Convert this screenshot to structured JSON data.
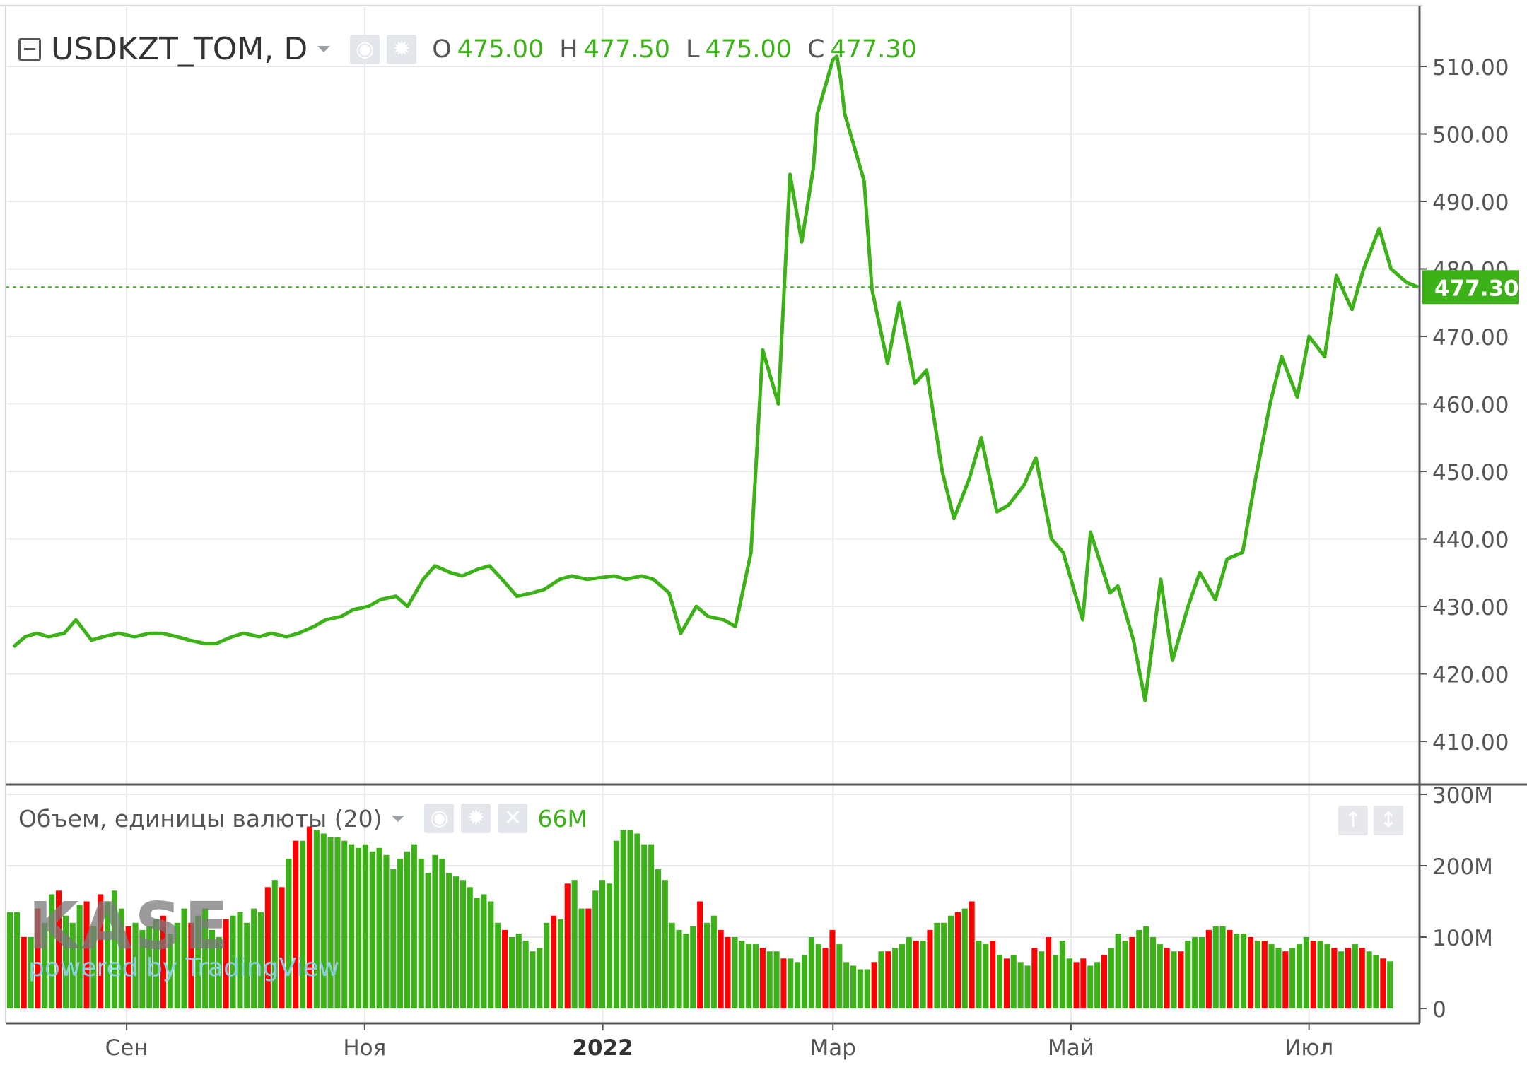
{
  "header": {
    "symbol": "USDKZT_TOM, D",
    "ohlc": [
      {
        "key": "O",
        "value": "475.00"
      },
      {
        "key": "H",
        "value": "477.50"
      },
      {
        "key": "L",
        "value": "475.00"
      },
      {
        "key": "C",
        "value": "477.30"
      }
    ]
  },
  "volume_header": {
    "title": "Объем, единицы валюты (20)",
    "value": "66M"
  },
  "logo": {
    "main": "KASE",
    "sub": "powered by TradingView"
  },
  "colors": {
    "up": "#3db218",
    "down": "#ff0000",
    "grid": "#e7e9ec",
    "axis_text": "#555555",
    "last_price_bg": "#3db218"
  },
  "chart_data": [
    {
      "type": "line",
      "title": "USDKZT_TOM, D",
      "ylim": [
        404,
        515
      ],
      "y_ticks": [
        "410.00",
        "420.00",
        "430.00",
        "440.00",
        "450.00",
        "460.00",
        "470.00",
        "480.00",
        "490.00",
        "500.00",
        "510.00"
      ],
      "last_value": "477.30",
      "x_ticks": [
        "Сен",
        "Ноя",
        "2022",
        "Мар",
        "Май",
        "Июл"
      ],
      "x": [
        "2021-08-03",
        "2021-08-06",
        "2021-08-09",
        "2021-08-12",
        "2021-08-16",
        "2021-08-19",
        "2021-08-23",
        "2021-08-26",
        "2021-08-30",
        "2021-09-03",
        "2021-09-07",
        "2021-09-10",
        "2021-09-14",
        "2021-09-17",
        "2021-09-21",
        "2021-09-24",
        "2021-09-28",
        "2021-10-01",
        "2021-10-05",
        "2021-10-08",
        "2021-10-12",
        "2021-10-15",
        "2021-10-19",
        "2021-10-22",
        "2021-10-26",
        "2021-10-29",
        "2021-11-02",
        "2021-11-05",
        "2021-11-09",
        "2021-11-12",
        "2021-11-16",
        "2021-11-19",
        "2021-11-23",
        "2021-11-26",
        "2021-11-30",
        "2021-12-03",
        "2021-12-07",
        "2021-12-10",
        "2021-12-14",
        "2021-12-17",
        "2021-12-21",
        "2021-12-24",
        "2021-12-28",
        "2022-01-04",
        "2022-01-07",
        "2022-01-11",
        "2022-01-14",
        "2022-01-18",
        "2022-01-21",
        "2022-01-25",
        "2022-01-28",
        "2022-02-01",
        "2022-02-04",
        "2022-02-08",
        "2022-02-11",
        "2022-02-15",
        "2022-02-18",
        "2022-02-21",
        "2022-02-24",
        "2022-02-25",
        "2022-02-28",
        "2022-03-01",
        "2022-03-02",
        "2022-03-03",
        "2022-03-04",
        "2022-03-09",
        "2022-03-11",
        "2022-03-15",
        "2022-03-18",
        "2022-03-22",
        "2022-03-25",
        "2022-03-29",
        "2022-04-01",
        "2022-04-05",
        "2022-04-08",
        "2022-04-12",
        "2022-04-15",
        "2022-04-19",
        "2022-04-22",
        "2022-04-26",
        "2022-04-29",
        "2022-05-04",
        "2022-05-06",
        "2022-05-11",
        "2022-05-13",
        "2022-05-17",
        "2022-05-20",
        "2022-05-24",
        "2022-05-27",
        "2022-05-31",
        "2022-06-03",
        "2022-06-07",
        "2022-06-10",
        "2022-06-14",
        "2022-06-17",
        "2022-06-21",
        "2022-06-24",
        "2022-06-28",
        "2022-07-01",
        "2022-07-05",
        "2022-07-08",
        "2022-07-12",
        "2022-07-15",
        "2022-07-19",
        "2022-07-22",
        "2022-07-26",
        "2022-07-29"
      ],
      "y": [
        424.0,
        425.5,
        426.0,
        425.5,
        426.0,
        428.0,
        425.0,
        425.5,
        426.0,
        425.5,
        426.0,
        426.0,
        425.5,
        425.0,
        424.5,
        424.5,
        425.5,
        426.0,
        425.5,
        426.0,
        425.5,
        426.0,
        427.0,
        428.0,
        428.5,
        429.5,
        430.0,
        431.0,
        431.5,
        430.0,
        434.0,
        436.0,
        435.0,
        434.5,
        435.5,
        436.0,
        433.5,
        431.5,
        432.0,
        432.5,
        434.0,
        434.5,
        434.0,
        434.5,
        434.0,
        434.5,
        434.0,
        432.0,
        426.0,
        430.0,
        428.5,
        428.0,
        427.0,
        438.0,
        468.0,
        460.0,
        494.0,
        484.0,
        495.0,
        503.0,
        509.0,
        511.0,
        511.5,
        508.0,
        503.0,
        493.0,
        477.0,
        466.0,
        475.0,
        463.0,
        465.0,
        450.0,
        443.0,
        449.0,
        455.0,
        444.0,
        445.0,
        448.0,
        452.0,
        440.0,
        438.0,
        428.0,
        441.0,
        432.0,
        433.0,
        425.0,
        416.0,
        434.0,
        422.0,
        430.0,
        435.0,
        431.0,
        437.0,
        438.0,
        448.0,
        460.0,
        467.0,
        461.0,
        470.0,
        467.0,
        479.0,
        474.0,
        480.0,
        486.0,
        480.0,
        478.0,
        477.3
      ]
    },
    {
      "type": "bar",
      "title": "Объем, единицы валюты (20)",
      "ylim": [
        0,
        300
      ],
      "y_ticks": [
        "0",
        "100M",
        "200M",
        "300M"
      ],
      "unit": "M",
      "values": [
        135,
        135,
        100,
        100,
        140,
        120,
        160,
        165,
        130,
        120,
        145,
        150,
        115,
        160,
        150,
        165,
        140,
        115,
        120,
        110,
        115,
        125,
        130,
        105,
        120,
        140,
        120,
        130,
        140,
        110,
        100,
        125,
        130,
        135,
        120,
        140,
        135,
        170,
        180,
        170,
        210,
        235,
        235,
        255,
        250,
        245,
        240,
        240,
        235,
        230,
        225,
        230,
        220,
        225,
        215,
        195,
        210,
        220,
        230,
        210,
        190,
        215,
        210,
        190,
        185,
        180,
        170,
        155,
        160,
        150,
        120,
        110,
        100,
        105,
        95,
        80,
        85,
        120,
        130,
        125,
        175,
        180,
        140,
        140,
        165,
        180,
        175,
        235,
        250,
        250,
        245,
        230,
        230,
        195,
        180,
        120,
        110,
        105,
        115,
        150,
        120,
        130,
        110,
        100,
        100,
        95,
        90,
        90,
        85,
        80,
        80,
        70,
        70,
        65,
        75,
        100,
        90,
        85,
        110,
        90,
        65,
        60,
        55,
        55,
        65,
        80,
        80,
        85,
        90,
        100,
        95,
        95,
        110,
        120,
        120,
        130,
        135,
        140,
        150,
        95,
        90,
        95,
        75,
        70,
        75,
        65,
        60,
        85,
        80,
        100,
        75,
        95,
        70,
        65,
        70,
        60,
        65,
        75,
        85,
        105,
        95,
        100,
        110,
        115,
        100,
        90,
        85,
        80,
        80,
        95,
        100,
        100,
        110,
        115,
        115,
        110,
        105,
        105,
        100,
        95,
        95,
        90,
        85,
        80,
        85,
        90,
        100,
        95,
        95,
        90,
        85,
        80,
        85,
        90,
        85,
        80,
        75,
        70,
        66
      ],
      "colors": [
        "up",
        "up",
        "down",
        "up",
        "down",
        "up",
        "up",
        "down",
        "up",
        "up",
        "up",
        "down",
        "up",
        "down",
        "up",
        "up",
        "up",
        "down",
        "up",
        "up",
        "up",
        "up",
        "down",
        "up",
        "up",
        "up",
        "down",
        "up",
        "up",
        "up",
        "up",
        "down",
        "up",
        "up",
        "up",
        "up",
        "up",
        "down",
        "up",
        "down",
        "up",
        "down",
        "up",
        "down",
        "up",
        "up",
        "up",
        "up",
        "up",
        "up",
        "up",
        "up",
        "up",
        "up",
        "up",
        "up",
        "up",
        "up",
        "up",
        "up",
        "up",
        "up",
        "up",
        "up",
        "up",
        "up",
        "up",
        "up",
        "up",
        "up",
        "up",
        "down",
        "up",
        "up",
        "up",
        "up",
        "up",
        "up",
        "down",
        "up",
        "down",
        "up",
        "up",
        "down",
        "up",
        "up",
        "up",
        "up",
        "up",
        "up",
        "up",
        "up",
        "up",
        "up",
        "up",
        "up",
        "up",
        "up",
        "up",
        "down",
        "up",
        "up",
        "down",
        "down",
        "up",
        "up",
        "up",
        "up",
        "down",
        "up",
        "up",
        "down",
        "up",
        "up",
        "up",
        "up",
        "up",
        "down",
        "down",
        "up",
        "up",
        "up",
        "up",
        "up",
        "down",
        "up",
        "down",
        "up",
        "up",
        "up",
        "down",
        "up",
        "down",
        "up",
        "up",
        "up",
        "down",
        "up",
        "down",
        "up",
        "up",
        "down",
        "up",
        "down",
        "up",
        "up",
        "up",
        "down",
        "up",
        "down",
        "up",
        "up",
        "up",
        "down",
        "down",
        "up",
        "up",
        "down",
        "up",
        "up",
        "up",
        "down",
        "up",
        "up",
        "up",
        "up",
        "down",
        "up",
        "down",
        "up",
        "up",
        "up",
        "down",
        "up",
        "up",
        "down",
        "up",
        "up",
        "down",
        "up",
        "down",
        "up",
        "up",
        "down",
        "up",
        "up",
        "up",
        "down",
        "up",
        "up",
        "down",
        "up",
        "down",
        "up",
        "down",
        "up",
        "up",
        "down",
        "up"
      ]
    }
  ]
}
